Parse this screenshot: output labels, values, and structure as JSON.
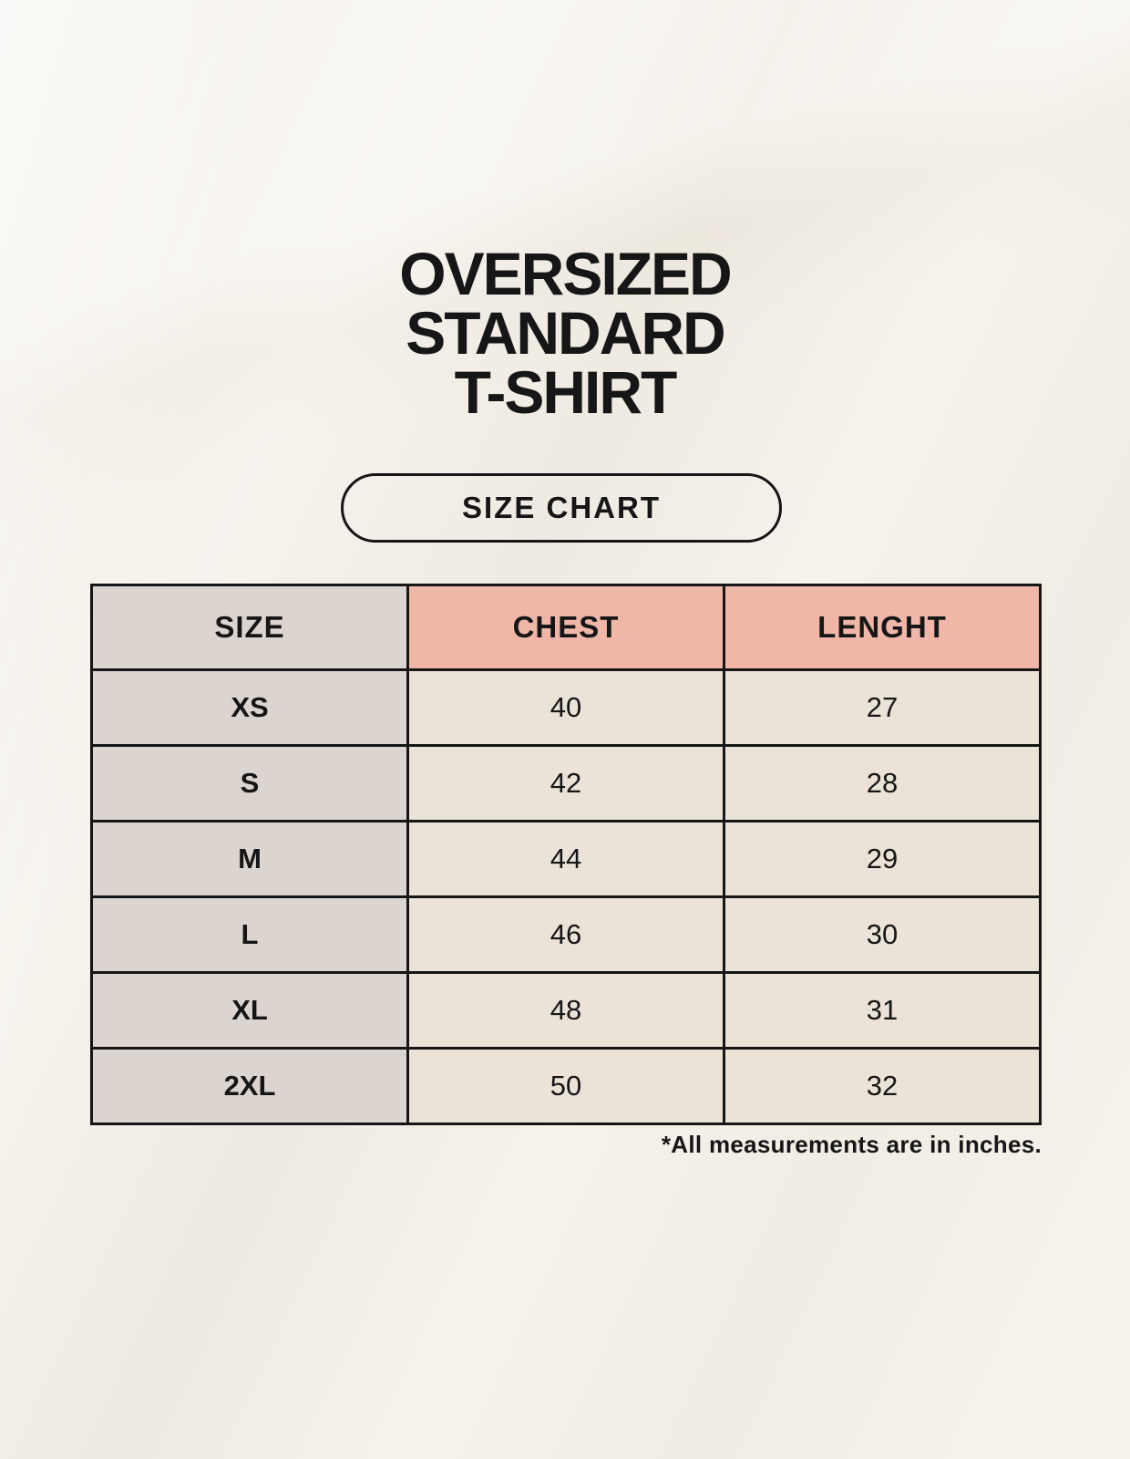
{
  "header": {
    "title_lines": [
      "OVERSIZED",
      "STANDARD",
      "T-SHIRT"
    ],
    "badge_label": "SIZE CHART"
  },
  "chart_data": {
    "type": "table",
    "columns": [
      "SIZE",
      "CHEST",
      "LENGHT"
    ],
    "rows": [
      [
        "XS",
        "40",
        "27"
      ],
      [
        "S",
        "42",
        "28"
      ],
      [
        "M",
        "44",
        "29"
      ],
      [
        "L",
        "46",
        "30"
      ],
      [
        "XL",
        "48",
        "31"
      ],
      [
        "2XL",
        "50",
        "32"
      ]
    ]
  },
  "footnote": "*All measurements are in inches.",
  "colors": {
    "background": "#f3efe7",
    "size_header_bg": "#dcd4cf",
    "measure_header_bg": "#f0b7a8",
    "data_cell_bg": "#ebe3d7",
    "border": "#161616",
    "text": "#161616"
  }
}
